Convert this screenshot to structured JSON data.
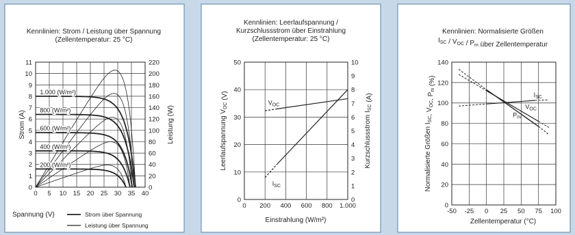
{
  "chart_data": [
    {
      "type": "line",
      "title": [
        "Kennlinien: Strom / Leistung über Spannung",
        "(Zellentemperatur: 25 °C)"
      ],
      "xlabel": "Spannung (V)",
      "ylabel": "Strom (A)",
      "y2label": "Leistung (W)",
      "xlim": [
        0,
        40
      ],
      "ylim": [
        0,
        11
      ],
      "y2lim": [
        0,
        220
      ],
      "x_ticks": [
        "0",
        "5",
        "10",
        "15",
        "20",
        "25",
        "30",
        "35",
        "40"
      ],
      "y_ticks": [
        "0",
        "1",
        "2",
        "3",
        "4",
        "5",
        "6",
        "7",
        "8",
        "9",
        "10",
        "11"
      ],
      "y2_ticks": [
        "0",
        "20",
        "40",
        "60",
        "80",
        "100",
        "120",
        "140",
        "160",
        "180",
        "200",
        "220"
      ],
      "legend": [
        "Strom über Spannung",
        "Leistung über Spannung"
      ],
      "series": [
        {
          "name": "1.000 (W/m²)",
          "isc": 8.0,
          "voc": 36.5,
          "pmax": 206,
          "vmp": 30.5
        },
        {
          "name": "800 (W/m²)",
          "isc": 6.4,
          "voc": 36.0,
          "pmax": 165,
          "vmp": 30.0
        },
        {
          "name": "600 (W/m²)",
          "isc": 4.8,
          "voc": 35.3,
          "pmax": 123,
          "vmp": 29.5
        },
        {
          "name": "400 (W/m²)",
          "isc": 3.2,
          "voc": 34.5,
          "pmax": 80,
          "vmp": 29.0
        },
        {
          "name": "200 (W/m²)",
          "isc": 1.6,
          "voc": 33.0,
          "pmax": 39,
          "vmp": 28.0
        }
      ]
    },
    {
      "type": "line",
      "title": [
        "Kennlinien: Leerlaufspannung /",
        "Kurzschlussstrom über Einstrahlung",
        "(Zellentemperatur: 25 °C)"
      ],
      "xlabel": "Einstrahlung (W/m²)",
      "ylabel": "Leerlaufspannung V",
      "ylabel_sub": "OC",
      "ylabel_unit": " (V)",
      "y2label": "Kurzschlussstrom I",
      "y2label_sub": "SC",
      "y2label_unit": " (A)",
      "xlim": [
        0,
        1000
      ],
      "ylim": [
        0,
        50
      ],
      "y2lim": [
        0,
        10
      ],
      "x_ticks": [
        "0",
        "200",
        "400",
        "600",
        "800",
        "1.000"
      ],
      "y_ticks": [
        "0",
        "10",
        "20",
        "30",
        "40",
        "50"
      ],
      "y2_ticks": [
        "0",
        "1",
        "2",
        "3",
        "4",
        "5",
        "6",
        "7",
        "8",
        "9",
        "10"
      ],
      "series": [
        {
          "name": "V",
          "sub": "OC",
          "x": [
            200,
            1000
          ],
          "y": [
            32.3,
            36.7
          ]
        },
        {
          "name": "I",
          "sub": "SC",
          "x": [
            200,
            1000
          ],
          "y": [
            1.6,
            8.0
          ]
        }
      ]
    },
    {
      "type": "line",
      "title": [
        "Kennlinien: Normalisierte Größen",
        "I / V / P über Zellentemperatur"
      ],
      "title_line2": [
        {
          "t": "I",
          "s": "SC"
        },
        {
          "t": " / V",
          "s": "OC"
        },
        {
          "t": " / P",
          "s": "m"
        },
        {
          "t": " über Zellentemperatur",
          "s": ""
        }
      ],
      "xlabel": "Zellentemperatur (°C)",
      "ylabel_parts": [
        {
          "t": "Normalisierte Größen I",
          "s": "SC"
        },
        {
          "t": ", V",
          "s": "OC"
        },
        {
          "t": ", P",
          "s": "m"
        },
        {
          "t": " (%)",
          "s": ""
        }
      ],
      "xlim": [
        -50,
        100
      ],
      "ylim": [
        0,
        140
      ],
      "x_ticks": [
        "-50",
        "-25",
        "0",
        "25",
        "50",
        "75",
        "100"
      ],
      "y_ticks": [
        "0",
        "20",
        "40",
        "60",
        "80",
        "100",
        "120",
        "140"
      ],
      "series": [
        {
          "name": "I",
          "sub": "SC",
          "x": [
            -40,
            90
          ],
          "y": [
            97,
            103
          ]
        },
        {
          "name": "V",
          "sub": "OC",
          "x": [
            -40,
            90
          ],
          "y": [
            128,
            76
          ]
        },
        {
          "name": "P",
          "sub": "m",
          "x": [
            -40,
            90
          ],
          "y": [
            133,
            69
          ]
        }
      ]
    }
  ]
}
